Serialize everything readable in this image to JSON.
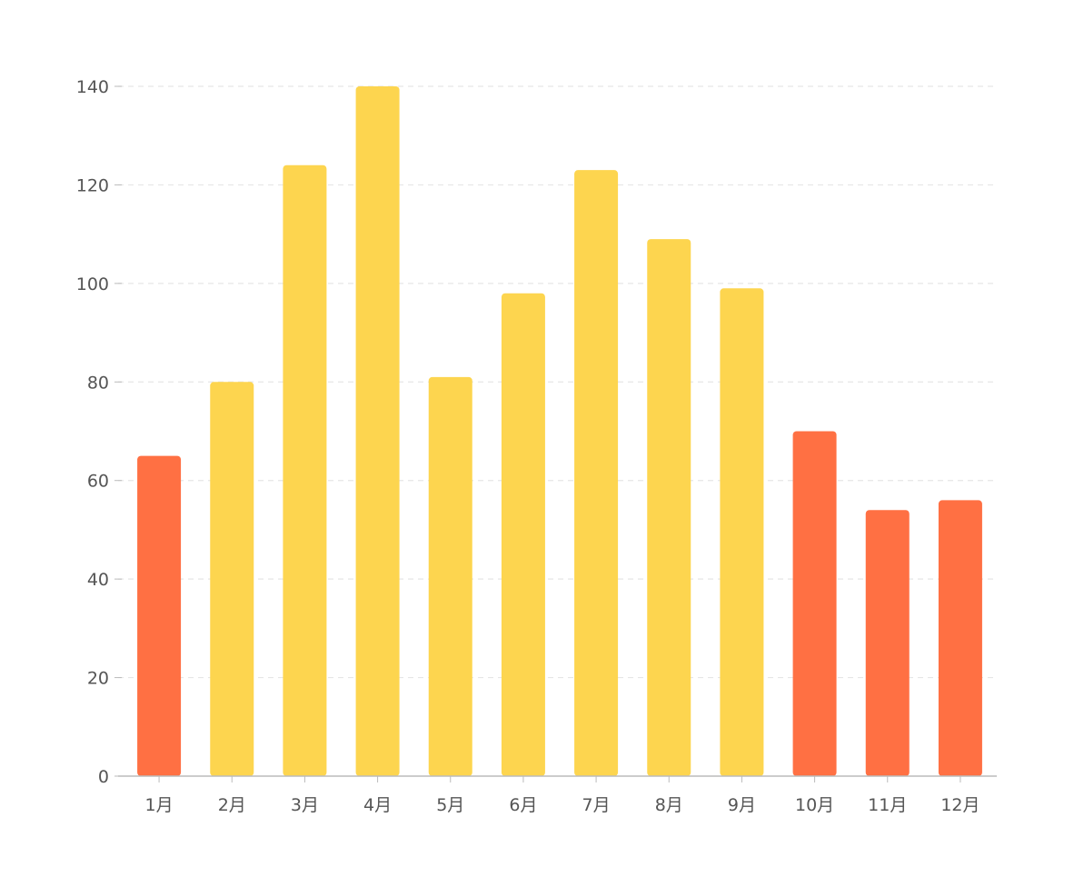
{
  "chart_data": {
    "type": "bar",
    "title": "",
    "xlabel": "",
    "ylabel": "",
    "categories": [
      "1月",
      "2月",
      "3月",
      "4月",
      "5月",
      "6月",
      "7月",
      "8月",
      "9月",
      "10月",
      "11月",
      "12月"
    ],
    "values": [
      65,
      80,
      124,
      140,
      81,
      98,
      123,
      109,
      99,
      70,
      54,
      56
    ],
    "colors": [
      "#FF7043",
      "#FDD54F",
      "#FDD54F",
      "#FDD54F",
      "#FDD54F",
      "#FDD54F",
      "#FDD54F",
      "#FDD54F",
      "#FDD54F",
      "#FF7043",
      "#FF7043",
      "#FF7043"
    ],
    "ylim": [
      0,
      140
    ],
    "yticks": [
      0,
      20,
      40,
      60,
      80,
      100,
      120,
      140
    ],
    "grid": true,
    "legend": "none"
  }
}
